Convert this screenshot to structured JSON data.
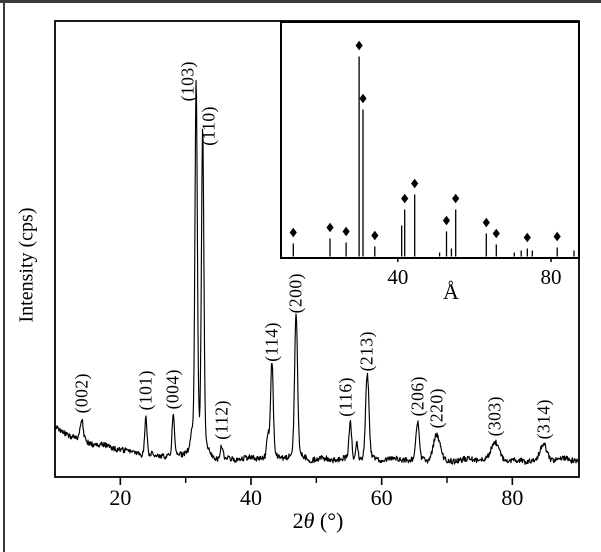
{
  "figure": {
    "background": "#ffffff",
    "ink_color": "#000000",
    "frame_color": "#3a3a3a",
    "xlabel_parts": [
      "2",
      "θ",
      " (°)"
    ]
  },
  "chart_data": [
    {
      "id": "xrd-main-pattern",
      "type": "line",
      "title": "",
      "xlabel": "2θ (°)",
      "ylabel": "Intensity (cps)",
      "xlim": [
        10,
        90.2
      ],
      "x_major_ticks": [
        20,
        40,
        60,
        80
      ],
      "x_minor_ticks": [
        30,
        50,
        70
      ],
      "y_axis": "unlabeled (arbitrary cps)",
      "intensity_scale": "relative, strongest peak (103) = 100",
      "background_signal": {
        "left_level": 9.4,
        "right_level": 0,
        "decay_deg": 8.5,
        "noise": 0.8
      },
      "peaks": [
        {
          "hkl": "(002)",
          "two_theta": 14.1,
          "intensity": 5.7,
          "width": 0.22
        },
        {
          "hkl": "(101)",
          "two_theta": 23.9,
          "intensity": 10.6,
          "width": 0.18
        },
        {
          "hkl": "(004)",
          "two_theta": 28.1,
          "intensity": 11.7,
          "width": 0.18
        },
        {
          "hkl": "(103)",
          "two_theta": 31.6,
          "intensity": 100,
          "width": 0.18,
          "label_dx": -8
        },
        {
          "hkl": "(110)",
          "two_theta": 32.6,
          "intensity": 87.5,
          "width": 0.18,
          "label_dx": 6
        },
        {
          "hkl": "(112)",
          "two_theta": 35.5,
          "intensity": 3.7,
          "width": 0.2
        },
        {
          "hkl": "(114)",
          "two_theta": 43.2,
          "intensity": 26.3,
          "width": 0.2
        },
        {
          "hkl": "(200)",
          "two_theta": 46.9,
          "intensity": 40.0,
          "width": 0.22
        },
        {
          "hkl": "(116)",
          "two_theta": 55.2,
          "intensity": 10.6,
          "width": 0.2,
          "label_dx": -4
        },
        {
          "hkl": "(213)",
          "two_theta": 57.8,
          "intensity": 23.7,
          "width": 0.25
        },
        {
          "hkl": "(206)",
          "two_theta": 65.5,
          "intensity": 10.6,
          "width": 0.25
        },
        {
          "hkl": "(220)",
          "two_theta": 68.4,
          "intensity": 7.4,
          "width": 0.5
        },
        {
          "hkl": "(303)",
          "two_theta": 77.4,
          "intensity": 4.9,
          "width": 0.6
        },
        {
          "hkl": "(314)",
          "two_theta": 84.8,
          "intensity": 4.3,
          "width": 0.5
        }
      ],
      "unlabeled_peaks": [
        {
          "two_theta": 30.9,
          "intensity": 3.0,
          "width": 0.2
        },
        {
          "two_theta": 42.6,
          "intensity": 6.3,
          "width": 0.18
        },
        {
          "two_theta": 56.2,
          "intensity": 4.6,
          "width": 0.18
        }
      ]
    },
    {
      "id": "xrd-inset-reference-pattern",
      "type": "stick",
      "xlabel": "Å",
      "xlim": [
        9.5,
        87.3
      ],
      "x_ticks": [
        40,
        80
      ],
      "marker_shape": "diamond",
      "intensity_scale": "relative, strongest stick = 100",
      "sticks": [
        {
          "x": 12.7,
          "intensity": 6.5,
          "marker": true
        },
        {
          "x": 22.3,
          "intensity": 9.0,
          "marker": true
        },
        {
          "x": 26.5,
          "intensity": 7.0,
          "marker": true
        },
        {
          "x": 29.9,
          "intensity": 100,
          "marker": true
        },
        {
          "x": 30.9,
          "intensity": 73.5,
          "marker": true
        },
        {
          "x": 34.0,
          "intensity": 5.0,
          "marker": true
        },
        {
          "x": 41.0,
          "intensity": 15.5,
          "marker": false
        },
        {
          "x": 41.8,
          "intensity": 23.5,
          "marker": true
        },
        {
          "x": 44.4,
          "intensity": 31.0,
          "marker": true
        },
        {
          "x": 50.9,
          "intensity": 2.0,
          "marker": false
        },
        {
          "x": 52.7,
          "intensity": 12.5,
          "marker": true
        },
        {
          "x": 54.0,
          "intensity": 4.0,
          "marker": false
        },
        {
          "x": 55.1,
          "intensity": 23.5,
          "marker": true
        },
        {
          "x": 63.1,
          "intensity": 11.5,
          "marker": true
        },
        {
          "x": 65.7,
          "intensity": 6.0,
          "marker": true
        },
        {
          "x": 70.4,
          "intensity": 2.0,
          "marker": false
        },
        {
          "x": 72.2,
          "intensity": 3.0,
          "marker": false
        },
        {
          "x": 73.8,
          "intensity": 4.0,
          "marker": true
        },
        {
          "x": 75.1,
          "intensity": 3.0,
          "marker": false
        },
        {
          "x": 81.6,
          "intensity": 4.5,
          "marker": true
        },
        {
          "x": 86.0,
          "intensity": 3.0,
          "marker": false
        }
      ]
    }
  ]
}
